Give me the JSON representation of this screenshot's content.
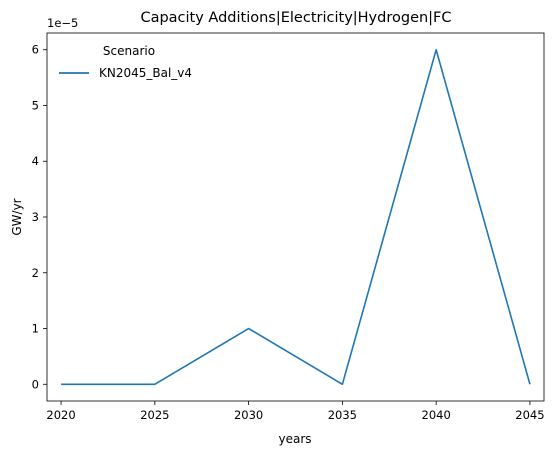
{
  "chart_data": {
    "type": "line",
    "title": "Capacity Additions|Electricity|Hydrogen|FC",
    "xlabel": "years",
    "ylabel": "GW/yr",
    "y_scale_label": "1e−5",
    "x": [
      2020,
      2025,
      2030,
      2035,
      2040,
      2045
    ],
    "x_ticks": [
      "2020",
      "2025",
      "2030",
      "2035",
      "2040",
      "2045"
    ],
    "y_ticks": [
      "0",
      "1",
      "2",
      "3",
      "4",
      "5",
      "6"
    ],
    "y_tick_values": [
      0,
      1,
      2,
      3,
      4,
      5,
      6
    ],
    "xlim": [
      2019.25,
      2045.75
    ],
    "ylim": [
      -0.3,
      6.3
    ],
    "grid": false,
    "legend": {
      "title": "Scenario",
      "placement": "top-left"
    },
    "series": [
      {
        "name": "KN2045_Bal_v4",
        "color": "#1f77b4",
        "values": [
          0,
          0,
          1,
          0,
          6,
          0
        ]
      }
    ]
  }
}
